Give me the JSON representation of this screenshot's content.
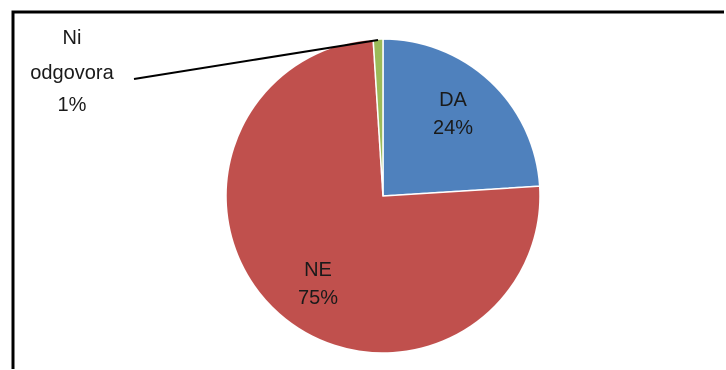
{
  "chart_data": {
    "type": "pie",
    "title": "",
    "slices": [
      {
        "label": "DA",
        "value": 24,
        "display": "24%",
        "color": "#4f81bd"
      },
      {
        "label": "NE",
        "value": 75,
        "display": "75%",
        "color": "#c0504d"
      },
      {
        "label_lines": [
          "Ni",
          "odgovora"
        ],
        "value": 1,
        "display": "1%",
        "color": "#9bbb59"
      }
    ],
    "legend": "none"
  }
}
